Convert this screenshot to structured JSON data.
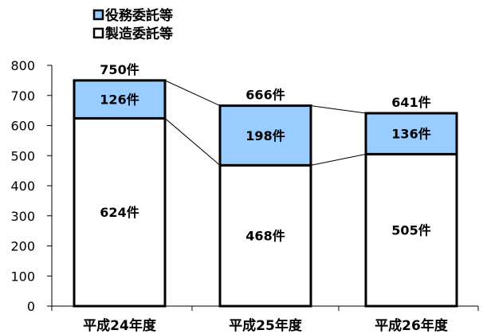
{
  "chart_data": {
    "type": "bar",
    "stacked": true,
    "categories": [
      "平成24年度",
      "平成25年度",
      "平成26年度"
    ],
    "series": [
      {
        "name": "製造委託等",
        "values": [
          624,
          468,
          505
        ],
        "labels": [
          "624件",
          "468件",
          "505件"
        ],
        "color": "#ffffff"
      },
      {
        "name": "役務委託等",
        "values": [
          126,
          198,
          136
        ],
        "labels": [
          "126件",
          "198件",
          "136件"
        ],
        "color": "#99ccff"
      }
    ],
    "totals": [
      750,
      666,
      641
    ],
    "total_labels": [
      "750件",
      "666件",
      "641件"
    ],
    "yticks": [
      0,
      100,
      200,
      300,
      400,
      500,
      600,
      700,
      800
    ],
    "ylim": [
      0,
      800
    ],
    "legend": [
      "役務委託等",
      "製造委託等"
    ],
    "legend_position": "top-left",
    "series_lines": true,
    "grid": false
  }
}
